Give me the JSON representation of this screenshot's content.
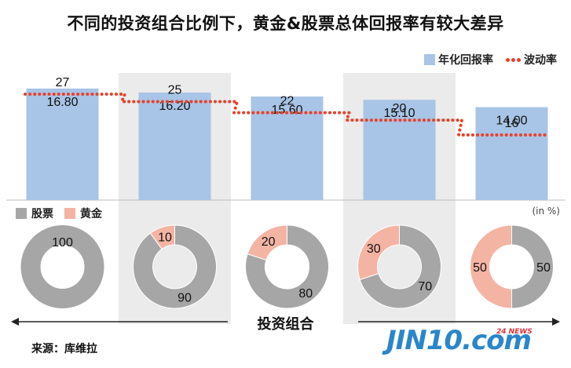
{
  "title": "不同的投资组合比例下，黄金&股票总体回报率有较大差异",
  "legend": {
    "bar_label": "年化回报率",
    "line_label": "波动率"
  },
  "pie_legend": {
    "stock_label": "股票",
    "gold_label": "黄金"
  },
  "unit_label": "(in %)",
  "x_axis_label": "投资组合",
  "source": "来源：库维拉",
  "logo": {
    "main": "JIN10.com",
    "sub": "24 NEWS"
  },
  "colors": {
    "bar": "#a8c4e6",
    "line": "#e8412c",
    "stock": "#a6a6a6",
    "gold": "#f4b4a4",
    "shade": "#ebebeb"
  },
  "chart_data": {
    "type": "bar",
    "categories": [
      "",
      "",
      "",
      "",
      ""
    ],
    "series": [
      {
        "name": "年化回报率",
        "values": [
          16.8,
          16.2,
          15.6,
          15.1,
          14.0
        ],
        "labels": [
          "16.80",
          "16.20",
          "15.60",
          "15.10",
          "14.00"
        ]
      },
      {
        "name": "波动率",
        "type": "line",
        "values": [
          27,
          25,
          22,
          20,
          16
        ],
        "labels": [
          "27",
          "25",
          "22",
          "20",
          "16"
        ]
      }
    ],
    "pies": [
      {
        "stock": 100,
        "gold": 0
      },
      {
        "stock": 90,
        "gold": 10
      },
      {
        "stock": 80,
        "gold": 20
      },
      {
        "stock": 70,
        "gold": 30
      },
      {
        "stock": 50,
        "gold": 50
      }
    ]
  }
}
